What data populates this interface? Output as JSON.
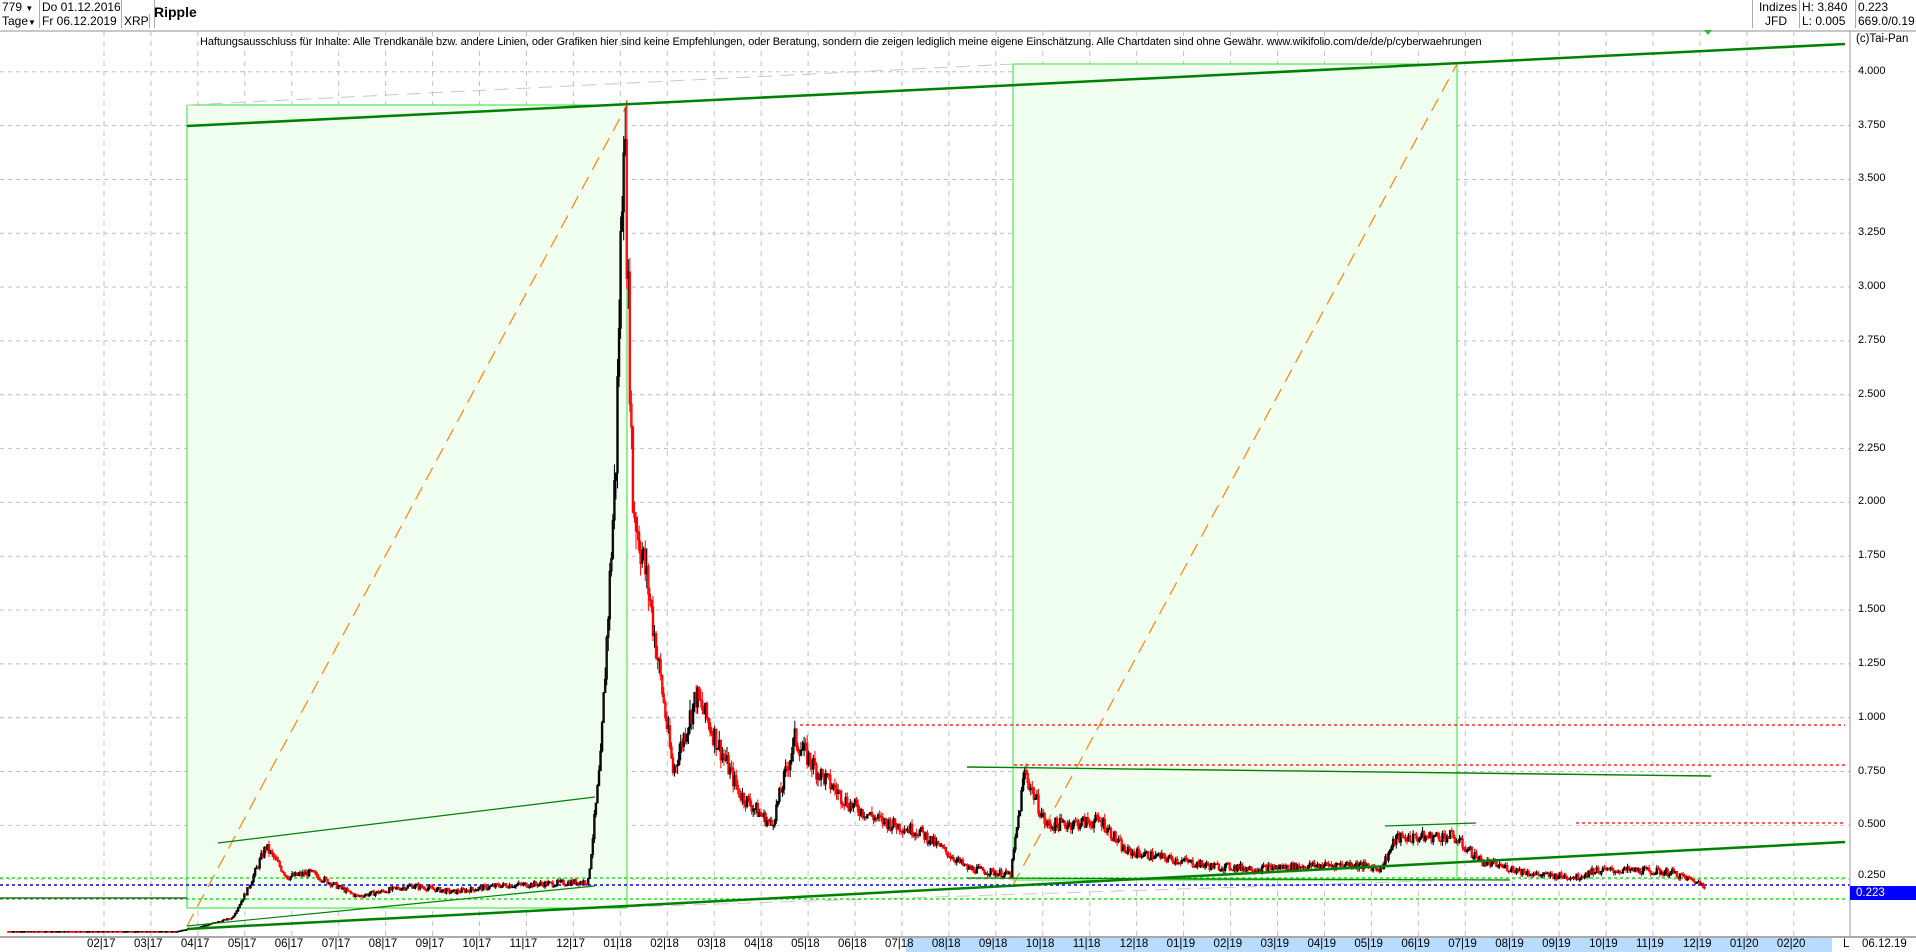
{
  "header": {
    "bar_count": "779",
    "period": "Tage",
    "start_date": "Do 01.12.2016",
    "end_date": "Fr 06.12.2019",
    "symbol": "XRP",
    "title": "Ripple",
    "source_top": "Indizes",
    "source_bottom": "JFD",
    "high": "H: 3.840",
    "low": "L: 0.005",
    "last": "0.223",
    "extra": "669.0/0.19"
  },
  "disclaimer": "Haftungsausschluss für Inhalte: Alle Trendkanäle bzw. andere Linien, oder Grafiken hier sind keine Empfehlungen, oder Beratung, sondern die zeigen lediglich meine eigene Einschätzung. Alle Chartdaten sind ohne Gewähr.  www.wikifolio.com/de/de/p/cyberwaehrungen",
  "copyright": "(c)Tai-Pan",
  "colors": {
    "up": "#000000",
    "down": "#ff0000",
    "trend": "#008000",
    "box": "#33dd33",
    "box_fill": "#f0fff0",
    "fib": "#ff8c1a",
    "price_line": "#0000ff"
  },
  "chart_data": {
    "type": "candlestick",
    "ylim": [
      0,
      4.1
    ],
    "yticks": [
      "4.000",
      "3.750",
      "3.500",
      "3.250",
      "3.000",
      "2.750",
      "2.500",
      "2.250",
      "2.000",
      "1.750",
      "1.500",
      "1.250",
      "1.000",
      "0.750",
      "0.500",
      "0.250"
    ],
    "xticks": [
      "02|17",
      "03|17",
      "04|17",
      "05|17",
      "06|17",
      "07|17",
      "08|17",
      "09|17",
      "10|17",
      "11|17",
      "12|17",
      "01|18",
      "02|18",
      "03|18",
      "04|18",
      "05|18",
      "06|18",
      "07|18",
      "08|18",
      "09|18",
      "10|18",
      "11|18",
      "12|18",
      "01|19",
      "02|19",
      "03|19",
      "04|19",
      "05|19",
      "06|19",
      "07|19",
      "08|19",
      "09|19",
      "10|19",
      "11|19",
      "12|19",
      "01|20",
      "02|20"
    ],
    "axis_end_marker": "L",
    "axis_end_date": "06.12.19",
    "current_price_label": "0.223",
    "grid": true,
    "close_keypoints": [
      [
        "2016-12-01",
        0.007
      ],
      [
        "2017-03-20",
        0.007
      ],
      [
        "2017-04-05",
        0.03
      ],
      [
        "2017-04-25",
        0.07
      ],
      [
        "2017-05-05",
        0.2
      ],
      [
        "2017-05-17",
        0.4
      ],
      [
        "2017-05-31",
        0.26
      ],
      [
        "2017-06-15",
        0.28
      ],
      [
        "2017-07-15",
        0.17
      ],
      [
        "2017-08-20",
        0.22
      ],
      [
        "2017-09-15",
        0.19
      ],
      [
        "2017-10-15",
        0.22
      ],
      [
        "2017-11-20",
        0.23
      ],
      [
        "2017-12-12",
        0.24
      ],
      [
        "2017-12-20",
        0.8
      ],
      [
        "2017-12-30",
        2.2
      ],
      [
        "2018-01-04",
        3.84
      ],
      [
        "2018-01-10",
        2.0
      ],
      [
        "2018-01-20",
        1.6
      ],
      [
        "2018-02-05",
        0.75
      ],
      [
        "2018-02-20",
        1.1
      ],
      [
        "2018-03-05",
        0.9
      ],
      [
        "2018-03-20",
        0.65
      ],
      [
        "2018-04-10",
        0.5
      ],
      [
        "2018-04-25",
        0.9
      ],
      [
        "2018-05-10",
        0.75
      ],
      [
        "2018-05-30",
        0.6
      ],
      [
        "2018-06-20",
        0.52
      ],
      [
        "2018-07-15",
        0.47
      ],
      [
        "2018-08-15",
        0.3
      ],
      [
        "2018-09-12",
        0.27
      ],
      [
        "2018-09-21",
        0.75
      ],
      [
        "2018-10-05",
        0.5
      ],
      [
        "2018-11-10",
        0.52
      ],
      [
        "2018-11-25",
        0.38
      ],
      [
        "2018-12-20",
        0.35
      ],
      [
        "2019-01-20",
        0.31
      ],
      [
        "2019-02-20",
        0.3
      ],
      [
        "2019-03-20",
        0.31
      ],
      [
        "2019-04-20",
        0.32
      ],
      [
        "2019-05-10",
        0.3
      ],
      [
        "2019-05-20",
        0.44
      ],
      [
        "2019-06-25",
        0.45
      ],
      [
        "2019-07-15",
        0.33
      ],
      [
        "2019-08-20",
        0.27
      ],
      [
        "2019-09-15",
        0.26
      ],
      [
        "2019-09-25",
        0.29
      ],
      [
        "2019-10-25",
        0.29
      ],
      [
        "2019-11-15",
        0.28
      ],
      [
        "2019-12-06",
        0.223
      ]
    ],
    "horizontal_levels": [
      0.96,
      0.775,
      0.5,
      0.25,
      0.223,
      0.14
    ]
  }
}
